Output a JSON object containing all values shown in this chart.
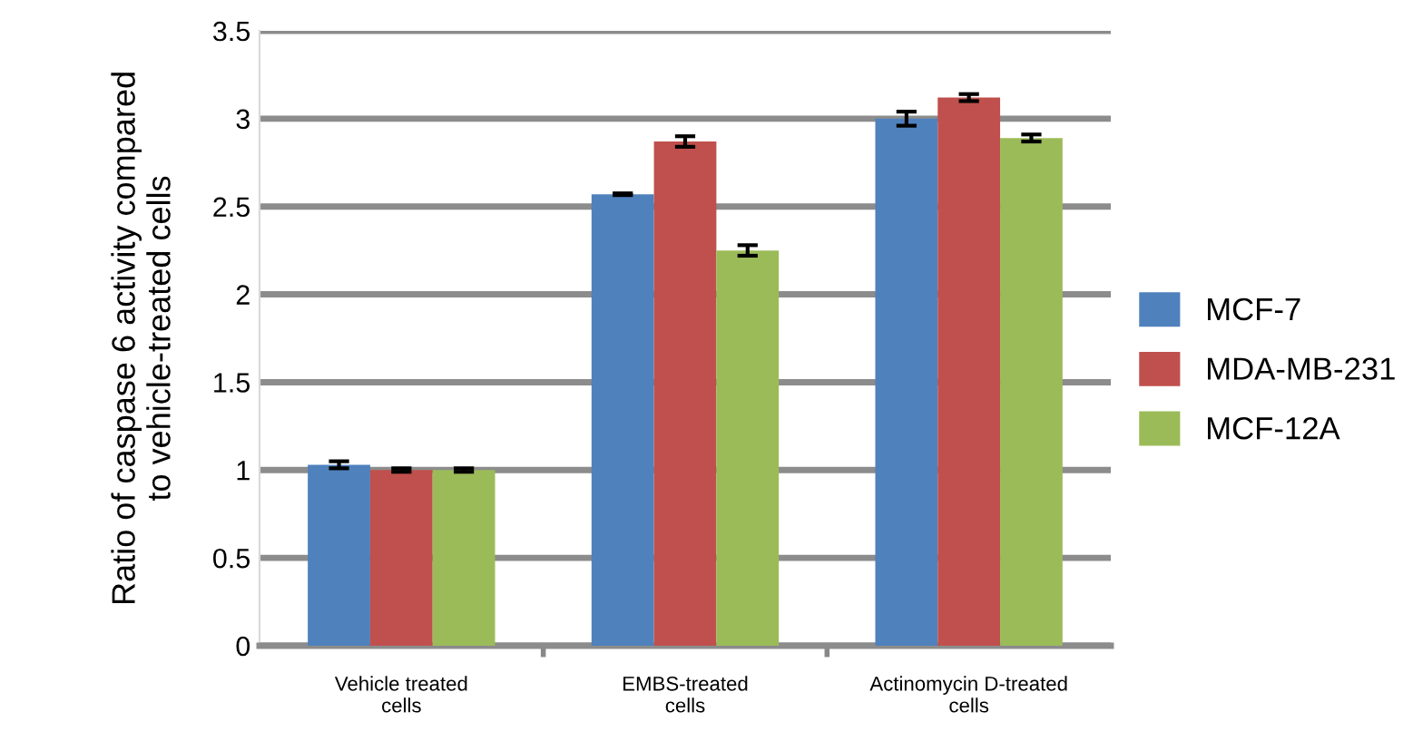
{
  "chart_data": {
    "type": "bar",
    "ylabel": "Ratio of caspase 6 activity compared\nto vehicle-treated cells",
    "categories": [
      "Vehicle treated\ncells",
      "EMBS-treated\ncells",
      "Actinomycin D-treated\ncells"
    ],
    "series": [
      {
        "name": "MCF-7",
        "color": "#4f81bd",
        "values": [
          1.03,
          2.57,
          3.0
        ],
        "errors": [
          0.02,
          0.005,
          0.04
        ]
      },
      {
        "name": "MDA-MB-231",
        "color": "#c0504d",
        "values": [
          1.0,
          2.87,
          3.12
        ],
        "errors": [
          0.01,
          0.03,
          0.02
        ]
      },
      {
        "name": "MCF-12A",
        "color": "#9bbb59",
        "values": [
          1.0,
          2.25,
          2.89
        ],
        "errors": [
          0.01,
          0.03,
          0.02
        ]
      }
    ],
    "ylim": [
      0,
      3.5
    ],
    "yticks": [
      0,
      0.5,
      1,
      1.5,
      2,
      2.5,
      3,
      3.5
    ],
    "grid": "y",
    "legend": "right"
  }
}
